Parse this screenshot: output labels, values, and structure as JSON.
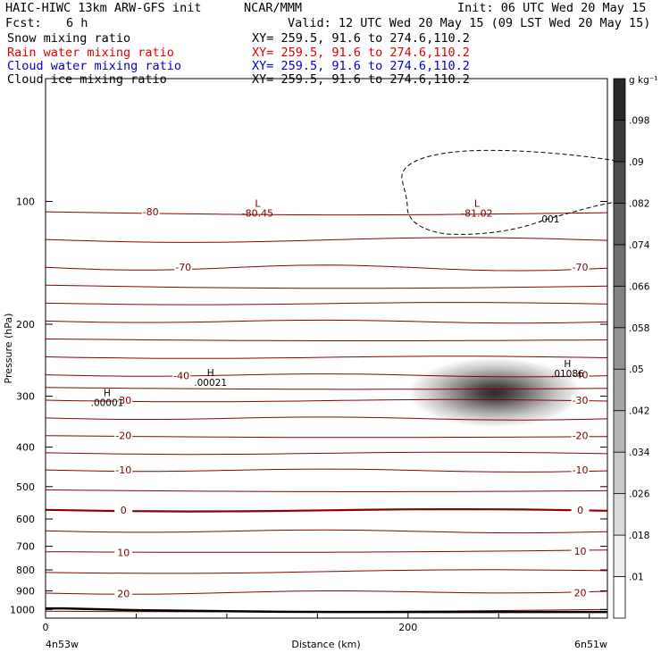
{
  "header": {
    "model": "HAIC-HIWC 13km ARW-GFS init",
    "org": "NCAR/MMM",
    "init": "Init: 06 UTC Wed 20 May 15",
    "fcst_label": "Fcst:",
    "fcst_value": "6 h",
    "valid": "Valid: 12 UTC Wed 20 May 15 (09 LST Wed 20 May 15)",
    "fields": [
      {
        "name": "Snow mixing ratio",
        "xy": "XY= 259.5, 91.6 to 274.6,110.2",
        "color": "#000000"
      },
      {
        "name": "Rain water mixing ratio",
        "xy": "XY= 259.5, 91.6 to 274.6,110.2",
        "color": "#e00000"
      },
      {
        "name": "Cloud water mixing ratio",
        "xy": "XY= 259.5, 91.6 to 274.6,110.2",
        "color": "#0000d0"
      },
      {
        "name": "Cloud ice mixing ratio",
        "xy": "XY= 259.5, 91.6 to 274.6,110.2",
        "color": "#000000"
      }
    ]
  },
  "chart_data": {
    "type": "contour",
    "xlabel": "Distance (km)",
    "ylabel": "Pressure (hPa)",
    "xlim": [
      0,
      310
    ],
    "ylim": [
      1050,
      50
    ],
    "y_scale": "log",
    "x_ticks": [
      0,
      200
    ],
    "x_minor_ticks": [
      50,
      100,
      150,
      250,
      300
    ],
    "y_ticks": [
      100,
      200,
      300,
      400,
      500,
      600,
      700,
      800,
      900,
      1000
    ],
    "endpoints": {
      "left": "4n53w",
      "right": "6n51w"
    },
    "colorbar": {
      "unit": "g kg⁻¹",
      "levels": [
        0.01,
        0.018,
        0.026,
        0.034,
        0.042,
        0.05,
        0.058,
        0.066,
        0.074,
        0.082,
        0.09,
        0.098
      ],
      "labels": [
        ".01",
        ".018",
        ".026",
        ".034",
        ".042",
        ".05",
        ".058",
        ".066",
        ".074",
        ".082",
        ".09",
        ".098"
      ]
    },
    "shaded_field": {
      "name": "Snow mixing ratio",
      "max_location": {
        "distance_km": 248,
        "pressure_hPa": 300
      }
    },
    "temperature_contours": {
      "color": "#8b0000",
      "interval_C": 5,
      "levels": [
        -80,
        -75,
        -70,
        -65,
        -60,
        -55,
        -50,
        -45,
        -40,
        -35,
        -30,
        -25,
        -20,
        -15,
        -10,
        -5,
        0,
        5,
        10,
        15,
        20,
        25
      ],
      "labeled": [
        {
          "text": "-80",
          "x_km": 58,
          "p": 106
        },
        {
          "text": "-70",
          "x_km": 76,
          "p": 145
        },
        {
          "text": "-70",
          "x_km": 295,
          "p": 145
        },
        {
          "text": "-40",
          "x_km": 75,
          "p": 267
        },
        {
          "text": "-40",
          "x_km": 295,
          "p": 266
        },
        {
          "text": "-30",
          "x_km": 43,
          "p": 307
        },
        {
          "text": "-30",
          "x_km": 295,
          "p": 307
        },
        {
          "text": "-20",
          "x_km": 43,
          "p": 375
        },
        {
          "text": "-20",
          "x_km": 295,
          "p": 375
        },
        {
          "text": "-10",
          "x_km": 43,
          "p": 455
        },
        {
          "text": "-10",
          "x_km": 295,
          "p": 455
        },
        {
          "text": "0",
          "x_km": 43,
          "p": 570
        },
        {
          "text": "0",
          "x_km": 295,
          "p": 570
        },
        {
          "text": "10",
          "x_km": 43,
          "p": 725
        },
        {
          "text": "10",
          "x_km": 295,
          "p": 720
        },
        {
          "text": "20",
          "x_km": 43,
          "p": 915
        },
        {
          "text": "20",
          "x_km": 295,
          "p": 910
        }
      ]
    },
    "cloud_ice_contour": {
      "value": ".001",
      "style": "dashed"
    },
    "extrema": [
      {
        "type": "L",
        "value": "-80.45",
        "x_km": 117,
        "p": 103
      },
      {
        "type": "L",
        "value": "-81.02",
        "x_km": 238,
        "p": 103
      },
      {
        "type": "H",
        "value": ".00021",
        "x_km": 91,
        "p": 268
      },
      {
        "type": "H",
        "value": ".00001",
        "x_km": 34,
        "p": 300
      },
      {
        "type": "H",
        "value": ".01086",
        "x_km": 288,
        "p": 255
      }
    ],
    "terrain": {
      "x_km": [
        0,
        10,
        50,
        100,
        130,
        160,
        200,
        250,
        310
      ],
      "p": [
        994,
        994,
        1004,
        1010,
        1013,
        1014,
        1014,
        1014,
        1014
      ]
    }
  }
}
